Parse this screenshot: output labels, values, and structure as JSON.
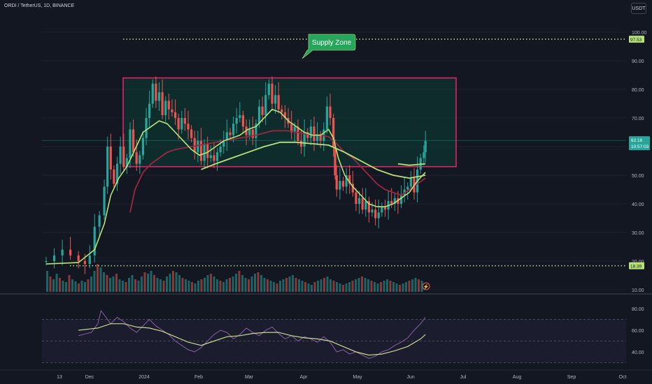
{
  "header": {
    "symbol": "ORDI / TetherUS",
    "interval": "1D",
    "exchange": "BINANCE",
    "currency_button": "USDT"
  },
  "annotations": {
    "supply_zone_label": "Supply Zone",
    "top_line_value": 97.53,
    "bottom_line_value": 18.39
  },
  "colors": {
    "background": "#131722",
    "up": "#26a69a",
    "down": "#ef5350",
    "zone_border": "#e91e63",
    "zone_fill": "#0d3b35",
    "ema_fast": "#b7e27a",
    "ema_slow": "#9c2743",
    "rsi": "#8a5fa8",
    "rsi_ma": "#c8d98a",
    "callout": "#26a65b"
  },
  "chart_data": [
    {
      "type": "candlestick",
      "title": "ORDI / TetherUS, 1D, BINANCE",
      "y_axis": {
        "ticks": [
          10,
          20,
          30,
          40,
          50,
          60,
          70,
          80,
          90,
          100
        ],
        "range": [
          10,
          102
        ],
        "side": "right"
      },
      "x_axis": {
        "ticks": [
          "13",
          "Dec",
          "2024",
          "Feb",
          "Mar",
          "Apr",
          "May",
          "Jun",
          "Jul",
          "Aug",
          "Sep",
          "Oct"
        ]
      },
      "last_price": {
        "value": "62.16",
        "countdown": "10:57:03"
      },
      "supply_zone": {
        "top": 84,
        "bottom": 53
      },
      "close_path": [
        [
          0,
          20
        ],
        [
          5,
          22
        ],
        [
          10,
          24
        ],
        [
          15,
          22
        ],
        [
          20,
          20
        ],
        [
          24,
          19
        ],
        [
          27,
          22
        ],
        [
          30,
          32
        ],
        [
          33,
          36
        ],
        [
          36,
          46
        ],
        [
          38,
          60
        ],
        [
          40,
          52
        ],
        [
          42,
          47
        ],
        [
          44,
          54
        ],
        [
          46,
          60
        ],
        [
          48,
          53
        ],
        [
          50,
          56
        ],
        [
          52,
          66
        ],
        [
          54,
          58
        ],
        [
          56,
          54
        ],
        [
          58,
          57
        ],
        [
          60,
          63
        ],
        [
          62,
          70
        ],
        [
          64,
          75
        ],
        [
          66,
          82
        ],
        [
          68,
          76
        ],
        [
          70,
          79
        ],
        [
          72,
          71
        ],
        [
          74,
          76
        ],
        [
          76,
          73
        ],
        [
          78,
          72
        ],
        [
          80,
          70
        ],
        [
          82,
          66
        ],
        [
          84,
          70
        ],
        [
          86,
          68
        ],
        [
          88,
          66
        ],
        [
          90,
          63
        ],
        [
          92,
          58
        ],
        [
          94,
          62
        ],
        [
          96,
          55
        ],
        [
          98,
          61
        ],
        [
          100,
          56
        ],
        [
          102,
          57
        ],
        [
          104,
          55
        ],
        [
          106,
          58
        ],
        [
          108,
          60
        ],
        [
          110,
          62
        ],
        [
          112,
          65
        ],
        [
          114,
          64
        ],
        [
          116,
          68
        ],
        [
          118,
          70
        ],
        [
          120,
          71
        ],
        [
          122,
          67
        ],
        [
          124,
          64
        ],
        [
          126,
          66
        ],
        [
          128,
          63
        ],
        [
          130,
          68
        ],
        [
          132,
          74
        ],
        [
          134,
          71
        ],
        [
          136,
          78
        ],
        [
          138,
          82
        ],
        [
          140,
          75
        ],
        [
          142,
          78
        ],
        [
          144,
          73
        ],
        [
          146,
          72
        ],
        [
          148,
          70
        ],
        [
          150,
          68
        ],
        [
          152,
          65
        ],
        [
          154,
          67
        ],
        [
          156,
          62
        ],
        [
          158,
          60
        ],
        [
          160,
          65
        ],
        [
          162,
          63
        ],
        [
          164,
          67
        ],
        [
          166,
          62
        ],
        [
          168,
          64
        ],
        [
          170,
          62
        ],
        [
          172,
          66
        ],
        [
          174,
          74
        ],
        [
          176,
          70
        ],
        [
          178,
          60
        ],
        [
          179,
          50
        ],
        [
          180,
          45
        ],
        [
          182,
          48
        ],
        [
          184,
          46
        ],
        [
          186,
          50
        ],
        [
          188,
          47
        ],
        [
          190,
          44
        ],
        [
          192,
          40
        ],
        [
          194,
          42
        ],
        [
          196,
          38
        ],
        [
          198,
          41
        ],
        [
          200,
          37
        ],
        [
          202,
          38
        ],
        [
          204,
          35
        ],
        [
          206,
          37
        ],
        [
          208,
          39
        ],
        [
          210,
          38
        ],
        [
          212,
          41
        ],
        [
          214,
          40
        ],
        [
          216,
          42
        ],
        [
          218,
          40
        ],
        [
          220,
          43
        ],
        [
          222,
          45
        ],
        [
          224,
          46
        ],
        [
          226,
          49
        ],
        [
          228,
          44
        ],
        [
          230,
          52
        ],
        [
          232,
          56
        ],
        [
          234,
          58
        ],
        [
          235,
          62
        ]
      ],
      "ema_fast": [
        [
          0,
          19
        ],
        [
          20,
          19.5
        ],
        [
          30,
          24
        ],
        [
          36,
          33
        ],
        [
          40,
          43
        ],
        [
          45,
          49
        ],
        [
          50,
          53
        ],
        [
          55,
          59
        ],
        [
          60,
          65
        ],
        [
          65,
          67
        ],
        [
          70,
          69
        ],
        [
          75,
          68
        ],
        [
          80,
          65
        ],
        [
          85,
          62
        ],
        [
          90,
          59
        ],
        [
          95,
          57
        ],
        [
          100,
          58
        ],
        [
          105,
          60
        ],
        [
          110,
          62
        ],
        [
          115,
          63
        ],
        [
          120,
          64
        ],
        [
          125,
          66
        ],
        [
          130,
          67
        ],
        [
          135,
          70
        ],
        [
          140,
          73
        ],
        [
          145,
          72
        ],
        [
          150,
          69
        ],
        [
          155,
          67
        ],
        [
          160,
          65
        ],
        [
          165,
          64
        ],
        [
          170,
          64
        ],
        [
          175,
          66
        ],
        [
          178,
          63
        ],
        [
          181,
          56
        ],
        [
          185,
          50
        ],
        [
          190,
          46
        ],
        [
          195,
          43
        ],
        [
          200,
          40
        ],
        [
          205,
          39
        ],
        [
          210,
          39
        ],
        [
          215,
          40
        ],
        [
          220,
          42
        ],
        [
          225,
          44
        ],
        [
          230,
          48
        ],
        [
          235,
          51
        ]
      ],
      "ema_slow": [
        [
          52,
          37
        ],
        [
          55,
          45
        ],
        [
          60,
          51
        ],
        [
          65,
          54
        ],
        [
          70,
          56
        ],
        [
          75,
          58
        ],
        [
          80,
          59
        ],
        [
          90,
          60
        ],
        [
          100,
          61
        ],
        [
          110,
          62
        ],
        [
          120,
          63
        ],
        [
          130,
          64
        ],
        [
          140,
          65.5
        ],
        [
          150,
          65.5
        ],
        [
          160,
          64.5
        ],
        [
          170,
          64
        ],
        [
          175,
          63.5
        ],
        [
          180,
          61
        ],
        [
          185,
          58
        ],
        [
          190,
          56
        ],
        [
          195,
          53
        ],
        [
          200,
          50
        ],
        [
          205,
          47
        ],
        [
          210,
          45
        ],
        [
          215,
          44
        ],
        [
          220,
          43
        ],
        [
          225,
          45
        ],
        [
          230,
          47
        ],
        [
          235,
          49
        ]
      ],
      "ma_long": [
        [
          96,
          52
        ],
        [
          105,
          54
        ],
        [
          115,
          56
        ],
        [
          125,
          58
        ],
        [
          135,
          60
        ],
        [
          145,
          61.5
        ],
        [
          155,
          61.5
        ],
        [
          165,
          61
        ],
        [
          175,
          60.5
        ],
        [
          185,
          58
        ],
        [
          195,
          55
        ],
        [
          205,
          52
        ],
        [
          215,
          50
        ],
        [
          225,
          49
        ],
        [
          235,
          50
        ]
      ],
      "ma_short_tail": [
        [
          218,
          54
        ],
        [
          225,
          53.5
        ],
        [
          235,
          54
        ]
      ],
      "volume": [
        30,
        22,
        18,
        26,
        20,
        16,
        14,
        24,
        18,
        15,
        12,
        16,
        14,
        18,
        22,
        30,
        40,
        35,
        28,
        24,
        20,
        22,
        26,
        18,
        16,
        14,
        20,
        24,
        18,
        16,
        22,
        28,
        26,
        30,
        24,
        20,
        18,
        16,
        22,
        26,
        30,
        28,
        24,
        20,
        18,
        16,
        14,
        12,
        16,
        18,
        20,
        24,
        26,
        22,
        18,
        16,
        14,
        18,
        20,
        22,
        26,
        30,
        24,
        20,
        18,
        22,
        26,
        28,
        24,
        20,
        18,
        16,
        14,
        12,
        16,
        18,
        20,
        22,
        24,
        20,
        18,
        16,
        14,
        12,
        10,
        14,
        16,
        18,
        20,
        22,
        18,
        16,
        14,
        12,
        10,
        12,
        14,
        16,
        18,
        20,
        22,
        20,
        18,
        16,
        14,
        12,
        14,
        16,
        18,
        16,
        14,
        12,
        10,
        12,
        14,
        16,
        18,
        20,
        18,
        16
      ],
      "high_marker": "⚡"
    },
    {
      "type": "line",
      "title": "RSI",
      "y_axis": {
        "ticks": [
          40,
          60,
          80
        ],
        "range": [
          30,
          85
        ],
        "bands": [
          30,
          50,
          70
        ]
      },
      "rsi": [
        [
          20,
          55
        ],
        [
          28,
          58
        ],
        [
          32,
          66
        ],
        [
          34,
          78
        ],
        [
          36,
          74
        ],
        [
          40,
          66
        ],
        [
          44,
          72
        ],
        [
          48,
          68
        ],
        [
          52,
          62
        ],
        [
          56,
          58
        ],
        [
          60,
          64
        ],
        [
          64,
          70
        ],
        [
          68,
          64
        ],
        [
          72,
          60
        ],
        [
          76,
          56
        ],
        [
          80,
          50
        ],
        [
          84,
          46
        ],
        [
          88,
          42
        ],
        [
          92,
          40
        ],
        [
          96,
          44
        ],
        [
          100,
          50
        ],
        [
          104,
          56
        ],
        [
          108,
          60
        ],
        [
          112,
          58
        ],
        [
          116,
          52
        ],
        [
          120,
          56
        ],
        [
          124,
          62
        ],
        [
          128,
          58
        ],
        [
          132,
          55
        ],
        [
          136,
          60
        ],
        [
          140,
          63
        ],
        [
          144,
          57
        ],
        [
          148,
          52
        ],
        [
          152,
          55
        ],
        [
          156,
          50
        ],
        [
          160,
          54
        ],
        [
          164,
          52
        ],
        [
          168,
          49
        ],
        [
          172,
          54
        ],
        [
          176,
          49
        ],
        [
          180,
          40
        ],
        [
          184,
          42
        ],
        [
          188,
          38
        ],
        [
          192,
          40
        ],
        [
          196,
          37
        ],
        [
          200,
          34
        ],
        [
          204,
          36
        ],
        [
          208,
          40
        ],
        [
          212,
          42
        ],
        [
          216,
          46
        ],
        [
          220,
          49
        ],
        [
          224,
          53
        ],
        [
          228,
          60
        ],
        [
          232,
          66
        ],
        [
          234,
          70
        ],
        [
          235,
          72
        ]
      ],
      "rsi_ma": [
        [
          20,
          60
        ],
        [
          32,
          62
        ],
        [
          40,
          66
        ],
        [
          48,
          66
        ],
        [
          56,
          63
        ],
        [
          64,
          62
        ],
        [
          72,
          59
        ],
        [
          80,
          54
        ],
        [
          88,
          49
        ],
        [
          96,
          46
        ],
        [
          104,
          50
        ],
        [
          112,
          54
        ],
        [
          120,
          55
        ],
        [
          128,
          57
        ],
        [
          136,
          58
        ],
        [
          144,
          58
        ],
        [
          152,
          55
        ],
        [
          160,
          53
        ],
        [
          168,
          52
        ],
        [
          176,
          50
        ],
        [
          184,
          45
        ],
        [
          192,
          40
        ],
        [
          200,
          37
        ],
        [
          208,
          38
        ],
        [
          216,
          41
        ],
        [
          224,
          45
        ],
        [
          232,
          52
        ],
        [
          235,
          56
        ]
      ]
    }
  ]
}
